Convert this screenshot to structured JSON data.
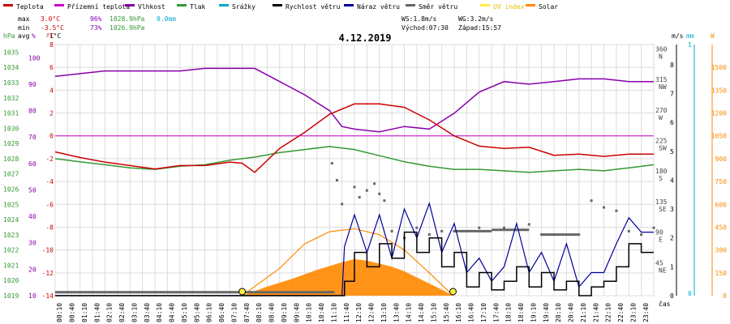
{
  "chart_data": {
    "type": "line",
    "title": "4.12.2019",
    "legend": [
      {
        "label": "Teplota",
        "color": "#cc0000"
      },
      {
        "label": "Přízemní teplota",
        "color": "#cc00cc"
      },
      {
        "label": "Vlhkost",
        "color": "#8800aa"
      },
      {
        "label": "Tlak",
        "color": "#339933"
      },
      {
        "label": "Srážky",
        "color": "#00aacc"
      },
      {
        "label": "Rychlost větru",
        "color": "#000000"
      },
      {
        "label": "Náraz větru",
        "color": "#000099"
      },
      {
        "label": "Směr větru",
        "color": "#666666"
      },
      {
        "label": "UV index",
        "color": "#ffee44"
      },
      {
        "label": "Solar",
        "color": "#ff8800"
      }
    ],
    "stats": {
      "max_label": "max",
      "min_label": "min",
      "avg_label": "avg",
      "max_temp": "3.0°C",
      "max_hum": "96%",
      "max_press": "1028.9hPa",
      "max_rain": "0.0mm",
      "min_temp": "-3.5°C",
      "min_hum": "73%",
      "min_press": "1026.9hPa",
      "avg_temp": "-1°C",
      "ws": "WS:1.8m/s",
      "wg": "WG:3.2m/s",
      "sunrise": "Východ:07:30",
      "sunset": "Západ:15:57"
    },
    "axis_units": {
      "press": "hPa",
      "hum": "%",
      "temp": "°C",
      "wind": "m/s",
      "rain": "mm",
      "solar": "W",
      "time": "čas"
    },
    "press_ticks": [
      "1035",
      "1034",
      "1033",
      "1032",
      "1031",
      "1030",
      "1029",
      "1028",
      "1027",
      "1026",
      "1025",
      "1024",
      "1023",
      "1022",
      "1021",
      "1020",
      "1019"
    ],
    "hum_ticks": [
      "100",
      "90",
      "80",
      "70",
      "60",
      "50",
      "40",
      "30",
      "20",
      "10"
    ],
    "temp_ticks": [
      "8",
      "6",
      "4",
      "2",
      "0",
      "-2",
      "-4",
      "-6",
      "-8",
      "-10",
      "-12",
      "-14"
    ],
    "dir_ticks": [
      {
        "deg": "360",
        "name": "N"
      },
      {
        "deg": "315",
        "name": "NW"
      },
      {
        "deg": "270",
        "name": "W"
      },
      {
        "deg": "225",
        "name": "SW"
      },
      {
        "deg": "180",
        "name": "S"
      },
      {
        "deg": "135",
        "name": "SE"
      },
      {
        "deg": "90",
        "name": "E"
      },
      {
        "deg": "45",
        "name": "NE"
      }
    ],
    "wind_ticks": [
      "8",
      "7",
      "6",
      "5",
      "4",
      "3",
      "2",
      "1",
      "0"
    ],
    "rain_ticks": [
      "1",
      "0"
    ],
    "solar_ticks": [
      "1500",
      "1350",
      "1200",
      "1050",
      "900",
      "750",
      "600",
      "450",
      "300",
      "150",
      "0"
    ],
    "time_labels": [
      "00:10",
      "00:40",
      "01:10",
      "01:40",
      "02:10",
      "02:40",
      "03:10",
      "03:40",
      "04:10",
      "04:40",
      "05:10",
      "05:40",
      "06:10",
      "06:40",
      "07:10",
      "07:40",
      "08:10",
      "08:40",
      "09:10",
      "09:40",
      "10:10",
      "10:40",
      "11:10",
      "11:40",
      "12:10",
      "12:40",
      "13:10",
      "13:40",
      "14:10",
      "14:40",
      "15:10",
      "15:40",
      "16:10",
      "16:40",
      "17:10",
      "17:40",
      "18:10",
      "18:40",
      "19:10",
      "19:40",
      "20:10",
      "20:40",
      "21:10",
      "21:40",
      "22:10",
      "22:40",
      "23:10",
      "23:40"
    ],
    "temperature_x_hours": [
      0,
      1,
      2,
      3,
      4,
      5,
      6,
      7,
      7.5,
      8,
      9,
      10,
      11,
      12,
      13,
      14,
      15,
      16,
      17,
      18,
      19,
      20,
      21,
      22,
      23,
      24
    ],
    "temperature": [
      -1.4,
      -1.9,
      -2.3,
      -2.6,
      -2.9,
      -2.6,
      -2.6,
      -2.3,
      -2.4,
      -3.2,
      -1.1,
      0.3,
      1.9,
      2.8,
      2.8,
      2.5,
      1.4,
      0.0,
      -0.9,
      -1.1,
      -1.0,
      -1.7,
      -1.6,
      -1.8,
      -1.6,
      -1.6
    ],
    "humidity_x_hours": [
      0,
      1,
      2,
      3,
      4,
      5,
      6,
      7,
      8,
      9,
      10,
      11,
      11.5,
      12,
      13,
      14,
      15,
      16,
      17,
      18,
      19,
      20,
      21,
      22,
      23,
      24
    ],
    "humidity": [
      93,
      94,
      95,
      95,
      95,
      95,
      96,
      96,
      96,
      91,
      86,
      80,
      74,
      73,
      72,
      74,
      73,
      79,
      87,
      91,
      90,
      91,
      92,
      92,
      91,
      91
    ],
    "pressure_x_hours": [
      0,
      1,
      2,
      3,
      4,
      5,
      6,
      7,
      8,
      9,
      10,
      11,
      12,
      13,
      14,
      15,
      16,
      17,
      18,
      19,
      20,
      21,
      22,
      23,
      24
    ],
    "pressure": [
      1028.0,
      1027.8,
      1027.6,
      1027.4,
      1027.3,
      1027.5,
      1027.6,
      1027.9,
      1028.1,
      1028.4,
      1028.6,
      1028.8,
      1028.6,
      1028.2,
      1027.8,
      1027.5,
      1027.3,
      1027.3,
      1027.2,
      1027.1,
      1027.2,
      1027.3,
      1027.2,
      1027.4,
      1027.6
    ],
    "wind_speed_x_hours": [
      0,
      11.5,
      11.6,
      12,
      12.5,
      13,
      13.5,
      14,
      14.5,
      15,
      15.5,
      16,
      16.5,
      17,
      17.5,
      18,
      18.5,
      19,
      19.5,
      20,
      20.5,
      21,
      21.5,
      22,
      22.5,
      23,
      23.5,
      24
    ],
    "wind_speed": [
      0,
      0,
      0.5,
      1.5,
      1.0,
      1.8,
      1.3,
      2.2,
      1.5,
      2.0,
      1.0,
      1.5,
      0.3,
      0.8,
      0.2,
      0.5,
      1.0,
      0.3,
      0.8,
      0.2,
      0.5,
      0.0,
      0.3,
      0.5,
      1.0,
      1.8,
      1.5,
      1.5
    ],
    "wind_gust_x_hours": [
      0,
      11.5,
      11.6,
      12,
      12.5,
      13,
      13.5,
      14,
      14.5,
      15,
      15.5,
      16,
      16.5,
      17,
      17.5,
      18,
      18.5,
      19,
      19.5,
      20,
      20.5,
      21,
      21.5,
      22,
      22.5,
      23,
      23.5,
      24
    ],
    "wind_gust": [
      0,
      0,
      1.7,
      2.8,
      1.5,
      2.8,
      1.3,
      3.0,
      2.0,
      3.2,
      1.5,
      2.5,
      0.8,
      1.3,
      0.5,
      1.0,
      2.5,
      0.8,
      1.5,
      0.5,
      1.8,
      0.3,
      0.8,
      0.8,
      1.8,
      2.7,
      2.2,
      2.2
    ],
    "solar_x_hours": [
      7.5,
      8.5,
      9.5,
      10.5,
      11.5,
      12,
      12.5,
      13,
      13.5,
      14,
      14.5,
      15,
      15.5,
      15.95
    ],
    "solar": [
      0,
      60,
      110,
      170,
      220,
      240,
      230,
      210,
      190,
      160,
      120,
      80,
      40,
      0
    ],
    "solar_max_x_hours": [
      7.5,
      9,
      10,
      11,
      12,
      13,
      14,
      15,
      15.95
    ],
    "solar_max": [
      0,
      180,
      340,
      420,
      440,
      400,
      300,
      150,
      0
    ],
    "wind_dir_x_hours": [
      11.1,
      11.3,
      11.5,
      12,
      12.2,
      12.5,
      12.8,
      13,
      13.2,
      13.5,
      14,
      14.5,
      15,
      15.5,
      16,
      17,
      18,
      19,
      19.5,
      20,
      21,
      21.5,
      22,
      22.5,
      23,
      23.5,
      24
    ],
    "wind_dir": [
      195,
      170,
      135,
      160,
      145,
      155,
      165,
      150,
      140,
      95,
      85,
      100,
      90,
      95,
      95,
      100,
      100,
      105,
      90,
      90,
      90,
      140,
      130,
      125,
      95,
      90,
      100
    ],
    "sun_marker_hours": [
      7.5,
      15.95
    ]
  }
}
